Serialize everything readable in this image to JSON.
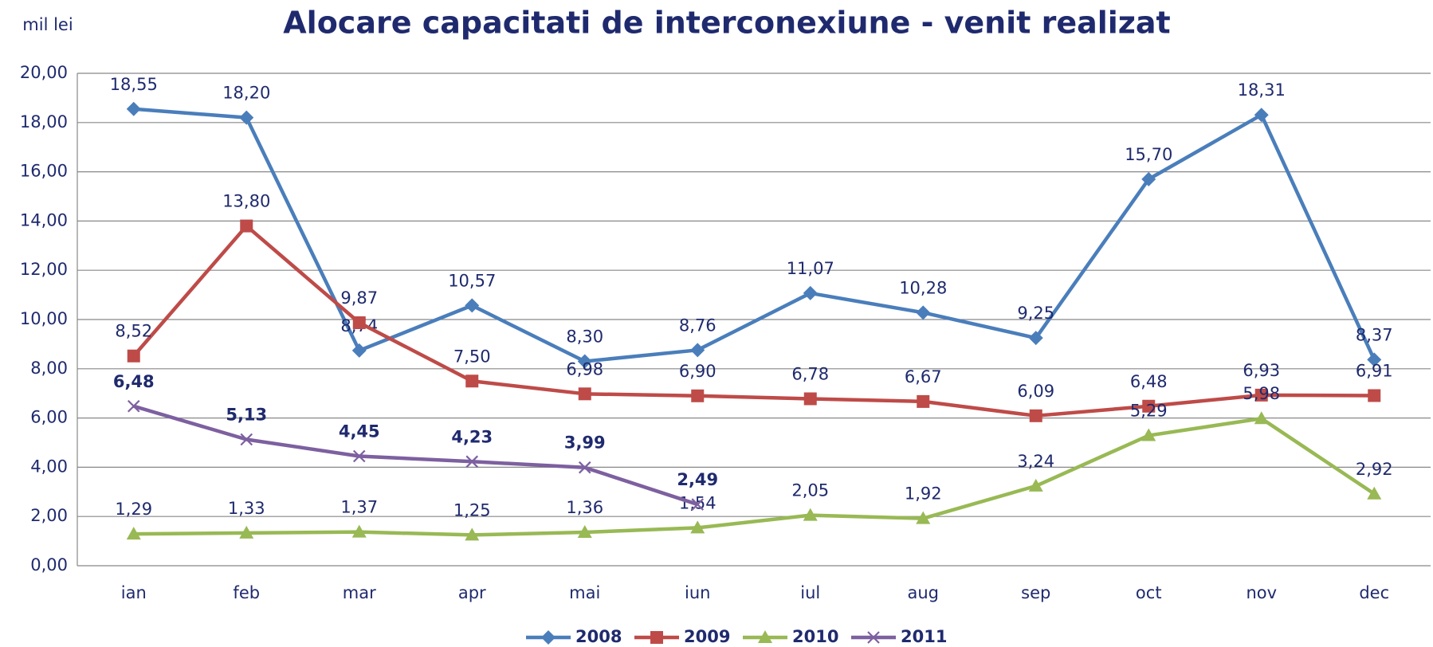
{
  "chart_data": {
    "type": "line",
    "title": "Alocare capacitati de interconexiune - venit realizat",
    "y_label": "mil lei",
    "categories": [
      "ian",
      "feb",
      "mar",
      "apr",
      "mai",
      "iun",
      "iul",
      "aug",
      "sep",
      "oct",
      "nov",
      "dec"
    ],
    "ylim": [
      0,
      20
    ],
    "yticks": [
      {
        "value": 0,
        "label": "0,00"
      },
      {
        "value": 2,
        "label": "2,00"
      },
      {
        "value": 4,
        "label": "4,00"
      },
      {
        "value": 6,
        "label": "6,00"
      },
      {
        "value": 8,
        "label": "8,00"
      },
      {
        "value": 10,
        "label": "10,00"
      },
      {
        "value": 12,
        "label": "12,00"
      },
      {
        "value": 14,
        "label": "14,00"
      },
      {
        "value": 16,
        "label": "16,00"
      },
      {
        "value": 18,
        "label": "18,00"
      },
      {
        "value": 20,
        "label": "20,00"
      }
    ],
    "grid": true,
    "legend": "bottom",
    "series": [
      {
        "name": "2008",
        "color": "#4a7ebb",
        "marker": "diamond",
        "values": [
          18.55,
          18.2,
          8.74,
          10.57,
          8.3,
          8.76,
          11.07,
          10.28,
          9.25,
          15.7,
          18.31,
          8.37
        ],
        "value_labels": [
          "18,55",
          "18,20",
          "8,74",
          "10,57",
          "8,30",
          "8,76",
          "11,07",
          "10,28",
          "9,25",
          "15,70",
          "18,31",
          "8,37"
        ]
      },
      {
        "name": "2009",
        "color": "#be4b48",
        "marker": "square",
        "values": [
          8.52,
          13.8,
          9.87,
          7.5,
          6.98,
          6.9,
          6.78,
          6.67,
          6.09,
          6.48,
          6.93,
          6.91
        ],
        "value_labels": [
          "8,52",
          "13,80",
          "9,87",
          "7,50",
          "6,98",
          "6,90",
          "6,78",
          "6,67",
          "6,09",
          "6,48",
          "6,93",
          "6,91"
        ]
      },
      {
        "name": "2010",
        "color": "#98b954",
        "marker": "triangle",
        "values": [
          1.29,
          1.33,
          1.37,
          1.25,
          1.36,
          1.54,
          2.05,
          1.92,
          3.24,
          5.29,
          5.98,
          2.92
        ],
        "value_labels": [
          "1,29",
          "1,33",
          "1,37",
          "1,25",
          "1,36",
          "1,54",
          "2,05",
          "1,92",
          "3,24",
          "5,29",
          "5,98",
          "2,92"
        ]
      },
      {
        "name": "2011",
        "color": "#7d60a0",
        "marker": "x",
        "bold_labels": true,
        "values": [
          6.48,
          5.13,
          4.45,
          4.23,
          3.99,
          2.49,
          null,
          null,
          null,
          null,
          null,
          null
        ],
        "value_labels": [
          "6,48",
          "5,13",
          "4,45",
          "4,23",
          "3,99",
          "2,49",
          null,
          null,
          null,
          null,
          null,
          null
        ]
      }
    ]
  }
}
